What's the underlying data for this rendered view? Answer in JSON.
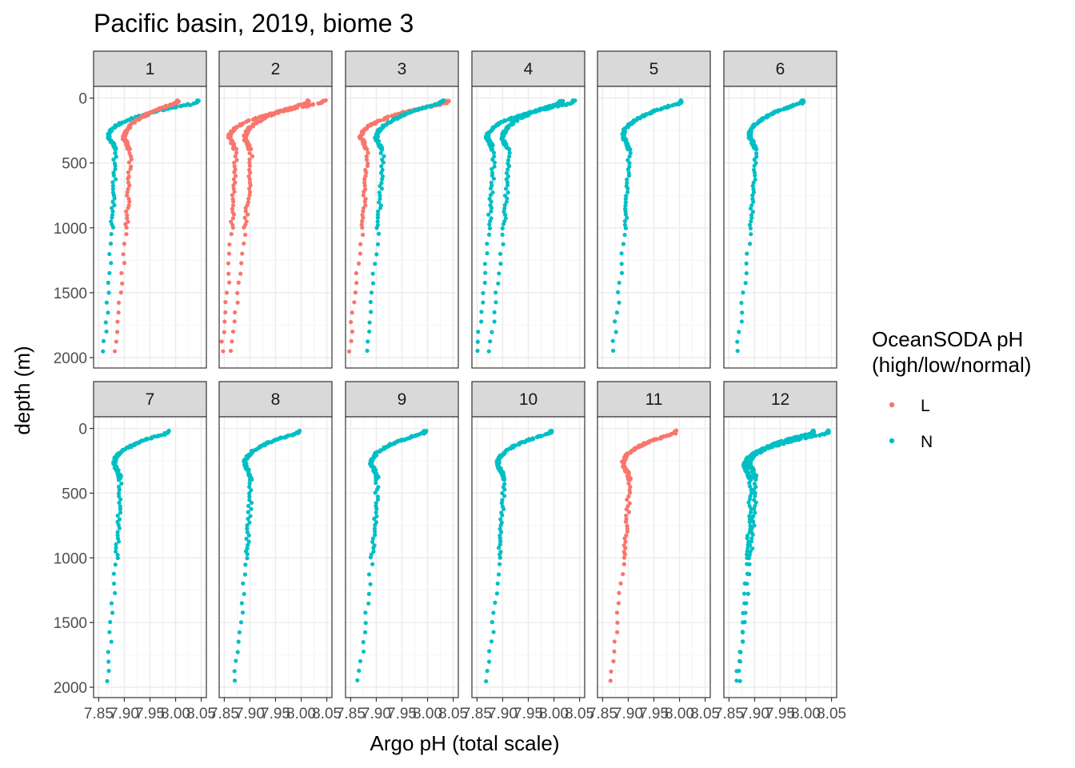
{
  "chart_data": {
    "type": "scatter",
    "title": "Pacific basin, 2019, biome 3",
    "xlabel": "Argo pH (total scale)",
    "ylabel": "depth (m)",
    "xlim": [
      7.84,
      8.06
    ],
    "ylim": [
      2080,
      -90
    ],
    "x_reversed": false,
    "y_reversed": true,
    "xticks": [
      7.85,
      7.9,
      7.95,
      8.0,
      8.05
    ],
    "xtick_labels": [
      "7.85",
      "7.90",
      "7.95",
      "8.00",
      "8.05"
    ],
    "yticks": [
      0,
      500,
      1000,
      1500,
      2000
    ],
    "ytick_labels": [
      "0",
      "500",
      "1000",
      "1500",
      "2000"
    ],
    "grid": true,
    "legend": {
      "title_lines": [
        "OceanSODA pH",
        "(high/low/normal)"
      ],
      "placement": "right",
      "entries": [
        {
          "label": "L",
          "color": "#F8766D"
        },
        {
          "label": "N",
          "color": "#00BFC4"
        }
      ]
    },
    "facets": [
      {
        "label": "1",
        "profiles": [
          {
            "group": "N",
            "surface_ph": 8.05,
            "surface_depth": 40,
            "turn_ph": 7.87,
            "turn_depth": 300,
            "deep_ph": 7.86,
            "deep_depth": 1980
          },
          {
            "group": "L",
            "surface_ph": 8.01,
            "surface_depth": 40,
            "turn_ph": 7.9,
            "turn_depth": 320,
            "deep_ph": 7.88,
            "deep_depth": 1960
          }
        ]
      },
      {
        "label": "2",
        "profiles": [
          {
            "group": "L",
            "surface_ph": 8.05,
            "surface_depth": 40,
            "turn_ph": 7.86,
            "turn_depth": 310,
            "deep_ph": 7.845,
            "deep_depth": 1980
          },
          {
            "group": "L",
            "surface_ph": 8.02,
            "surface_depth": 40,
            "turn_ph": 7.89,
            "turn_depth": 320,
            "deep_ph": 7.86,
            "deep_depth": 1960
          }
        ]
      },
      {
        "label": "3",
        "profiles": [
          {
            "group": "L",
            "surface_ph": 8.045,
            "surface_depth": 40,
            "turn_ph": 7.87,
            "turn_depth": 310,
            "deep_ph": 7.845,
            "deep_depth": 1980
          },
          {
            "group": "N",
            "surface_ph": 8.035,
            "surface_depth": 40,
            "turn_ph": 7.9,
            "turn_depth": 320,
            "deep_ph": 7.88,
            "deep_depth": 1960
          }
        ]
      },
      {
        "label": "4",
        "profiles": [
          {
            "group": "N",
            "surface_ph": 8.045,
            "surface_depth": 40,
            "turn_ph": 7.87,
            "turn_depth": 310,
            "deep_ph": 7.85,
            "deep_depth": 1980
          },
          {
            "group": "N",
            "surface_ph": 8.02,
            "surface_depth": 40,
            "turn_ph": 7.9,
            "turn_depth": 320,
            "deep_ph": 7.875,
            "deep_depth": 1960
          }
        ]
      },
      {
        "label": "5",
        "profiles": [
          {
            "group": "N",
            "surface_ph": 8.01,
            "surface_depth": 40,
            "turn_ph": 7.89,
            "turn_depth": 300,
            "deep_ph": 7.87,
            "deep_depth": 1970
          }
        ]
      },
      {
        "label": "6",
        "profiles": [
          {
            "group": "N",
            "surface_ph": 8.0,
            "surface_depth": 40,
            "turn_ph": 7.89,
            "turn_depth": 300,
            "deep_ph": 7.865,
            "deep_depth": 1970
          }
        ]
      },
      {
        "label": "7",
        "profiles": [
          {
            "group": "N",
            "surface_ph": 7.99,
            "surface_depth": 40,
            "turn_ph": 7.88,
            "turn_depth": 280,
            "deep_ph": 7.865,
            "deep_depth": 1970
          }
        ]
      },
      {
        "label": "8",
        "profiles": [
          {
            "group": "N",
            "surface_ph": 8.0,
            "surface_depth": 40,
            "turn_ph": 7.89,
            "turn_depth": 280,
            "deep_ph": 7.87,
            "deep_depth": 1970
          }
        ]
      },
      {
        "label": "9",
        "profiles": [
          {
            "group": "N",
            "surface_ph": 8.0,
            "surface_depth": 40,
            "turn_ph": 7.89,
            "turn_depth": 280,
            "deep_ph": 7.865,
            "deep_depth": 1970
          }
        ]
      },
      {
        "label": "10",
        "profiles": [
          {
            "group": "N",
            "surface_ph": 8.0,
            "surface_depth": 40,
            "turn_ph": 7.89,
            "turn_depth": 280,
            "deep_ph": 7.87,
            "deep_depth": 1970
          }
        ]
      },
      {
        "label": "11",
        "profiles": [
          {
            "group": "L",
            "surface_ph": 8.0,
            "surface_depth": 40,
            "turn_ph": 7.89,
            "turn_depth": 280,
            "deep_ph": 7.865,
            "deep_depth": 1970
          }
        ]
      },
      {
        "label": "12",
        "profiles": [
          {
            "group": "N",
            "surface_ph": 8.05,
            "surface_depth": 40,
            "turn_ph": 7.89,
            "turn_depth": 280,
            "deep_ph": 7.865,
            "deep_depth": 1970
          },
          {
            "group": "N",
            "surface_ph": 8.02,
            "surface_depth": 40,
            "turn_ph": 7.88,
            "turn_depth": 300,
            "deep_ph": 7.87,
            "deep_depth": 1950
          }
        ]
      }
    ]
  }
}
